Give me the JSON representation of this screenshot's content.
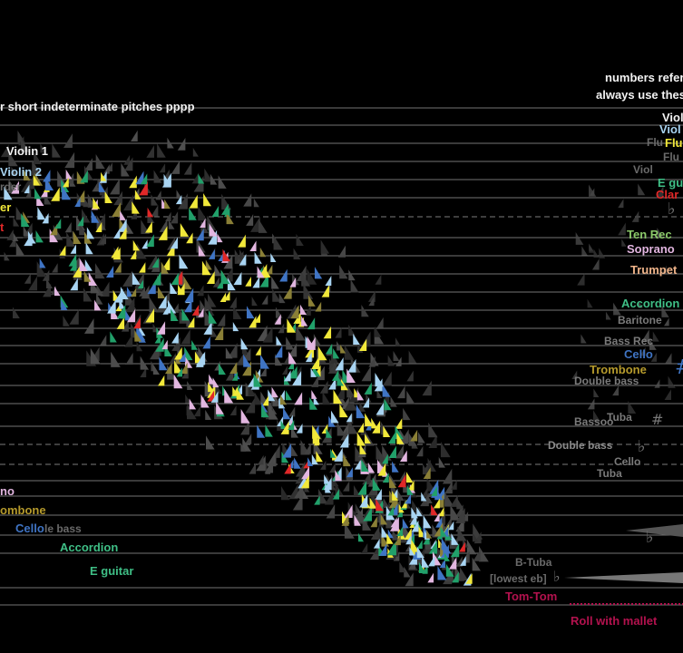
{
  "header": {
    "left_note": "r short indeterminate pitches pppp",
    "right_note_1": "numbers refer",
    "right_note_2": "always use thes"
  },
  "colors": {
    "background": "#000000",
    "staff_line": "#d0d0d0",
    "yellow": "#f1e83a",
    "light_blue": "#a8d4f2",
    "pink": "#e2b6e0",
    "green": "#21a06a",
    "blue": "#3f74c4",
    "olive": "#8a7f36",
    "red": "#e02828",
    "grey": "#3a3a3a",
    "accordion": "#3fbf86",
    "trombone": "#b59a2c",
    "trumpet": "#f0b48a",
    "crimson": "#b3124e"
  },
  "left_labels": {
    "violin1": "Violin 1",
    "violin2": "Violin 2",
    "recorder": "rder",
    "partial_er": "er",
    "partial_t": "t",
    "soprano": "no",
    "trombone": "ombone",
    "cello": "Cello",
    "double_bass_ghost": "le bass",
    "accordion": "Accordion",
    "e_guitar": "E guitar"
  },
  "right_labels": {
    "violin1": "Violi",
    "violin2": "Viol",
    "flute": "Flu",
    "flute_ghost": "Flu",
    "flute_ghost2": "Flu",
    "violin_ghost": "Viol",
    "e_guitar": "E gu",
    "clarinet": "Clar",
    "ten_rec": "Ten Rec",
    "soprano": "Soprano",
    "trumpet": "Trumpet",
    "accordion": "Accordion",
    "baritone": "Baritone",
    "bass_rec": "Bass Rec",
    "cello": "Cello",
    "trombone": "Trombone",
    "double_bass_1": "Double bass",
    "bassoon": "Bassoo",
    "tuba_1": "Tuba",
    "double_bass_2": "Double bass",
    "cello_2": "Cello",
    "tuba_2": "Tuba",
    "b_tuba": "B-Tuba",
    "lowest_eb": "[lowest eb]",
    "tom_tom": "Tom-Tom",
    "roll_with_mallet": "Roll with mallet"
  }
}
